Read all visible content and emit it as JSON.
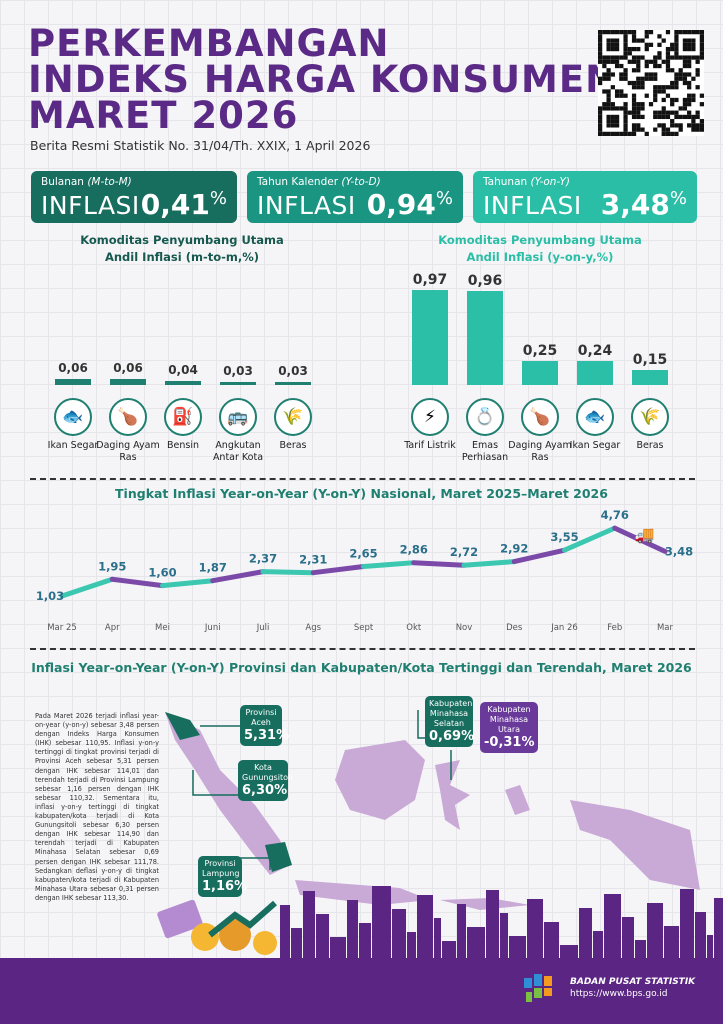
{
  "header": {
    "title_lines": [
      "PERKEMBANGAN",
      "INDEKS HARGA KONSUMEN",
      "MARET 2026"
    ],
    "subtitle": "Berita Resmi Statistik No. 31/04/Th. XXIX, 1 April 2026"
  },
  "cards": [
    {
      "label": "Bulanan",
      "label_em": "(M-to-M)",
      "word": "INFLASI",
      "value": "0,41",
      "unit": "%",
      "color": "#176d5e"
    },
    {
      "label": "Tahun Kalender",
      "label_em": "(Y-to-D)",
      "word": "INFLASI",
      "value": "0,94",
      "unit": "%",
      "color": "#1a9582"
    },
    {
      "label": "Tahunan",
      "label_em": "(Y-on-Y)",
      "word": "INFLASI",
      "value": "3,48",
      "unit": "%",
      "color": "#2bbea6"
    }
  ],
  "chart_data": [
    {
      "type": "bar",
      "title_line1": "Komoditas Penyumbang Utama",
      "title_line2": "Andil Inflasi (m-to-m,%)",
      "categories": [
        "Ikan Segar",
        "Daging Ayam Ras",
        "Bensin",
        "Angkutan Antar Kota",
        "Beras"
      ],
      "values": [
        0.06,
        0.06,
        0.04,
        0.03,
        0.03
      ],
      "labels": [
        "0,06",
        "0,06",
        "0,04",
        "0,03",
        "0,03"
      ],
      "icons": [
        "fish-icon",
        "chicken-icon",
        "fuel-icon",
        "bus-icon",
        "rice-sack-icon"
      ],
      "bar_color": "#1f7f70"
    },
    {
      "type": "bar",
      "title_line1": "Komoditas Penyumbang Utama",
      "title_line2": "Andil Inflasi (y-on-y,%)",
      "categories": [
        "Tarif Listrik",
        "Emas Perhiasan",
        "Daging Ayam Ras",
        "Ikan Segar",
        "Beras"
      ],
      "values": [
        0.97,
        0.96,
        0.25,
        0.24,
        0.15
      ],
      "labels": [
        "0,97",
        "0,96",
        "0,25",
        "0,24",
        "0,15"
      ],
      "icons": [
        "electricity-icon",
        "gold-jewelry-icon",
        "chicken-icon",
        "fish-icon",
        "rice-sack-icon"
      ],
      "bar_color": "#2cbfa7"
    },
    {
      "type": "line",
      "title": "Tingkat Inflasi Year-on-Year (Y-on-Y) Nasional, Maret 2025–Maret 2026",
      "categories": [
        "Mar 25",
        "Apr",
        "Mei",
        "Juni",
        "Juli",
        "Ags",
        "Sept",
        "Okt",
        "Nov",
        "Des",
        "Jan 26",
        "Feb",
        "Mar"
      ],
      "values": [
        1.03,
        1.95,
        1.6,
        1.87,
        2.37,
        2.31,
        2.65,
        2.86,
        2.72,
        2.92,
        3.55,
        4.76,
        3.48
      ],
      "labels": [
        "1,03",
        "1,95",
        "1,60",
        "1,87",
        "2,37",
        "2,31",
        "2,65",
        "2,86",
        "2,72",
        "2,92",
        "3,55",
        "4,76",
        "3,48"
      ],
      "colors": [
        "#3cc8b0",
        "#7b4aa8"
      ]
    }
  ],
  "map": {
    "title": "Inflasi Year-on-Year (Y-on-Y) Provinsi dan Kabupaten/Kota Tertinggi dan Terendah, Maret 2026",
    "paragraph": "Pada Maret 2026 terjadi inflasi year-on-year (y-on-y) sebesar 3,48 persen dengan Indeks Harga Konsumen (IHK) sebesar 110,95. Inflasi y-on-y tertinggi di tingkat provinsi terjadi di Provinsi Aceh sebesar 5,31 persen dengan IHK sebesar 114,01 dan terendah terjadi di Provinsi Lampung sebesar 1,16 persen dengan IHK sebesar 110,32. Sementara itu, inflasi y-on-y tertinggi di tingkat kabupaten/kota terjadi di Kota Gunungsitoli sebesar 6,30 persen dengan IHK sebesar 114,90 dan terendah terjadi di Kabupaten Minahasa Selatan sebesar 0,69 persen dengan IHK sebesar 111,78. Sedangkan deflasi y-on-y di tingkat kabupaten/kota terjadi di Kabupaten Minahasa Utara sebesar 0,31 persen dengan IHK sebesar 113,30.",
    "callouts": [
      {
        "name": "Provinsi Aceh",
        "value": "5,31%"
      },
      {
        "name": "Kota Gunungsitoli",
        "value": "6,30%"
      },
      {
        "name": "Provinsi Lampung",
        "value": "1,16%"
      },
      {
        "name": "Kabupaten Minahasa Selatan",
        "value": "0,69%"
      },
      {
        "name": "Kabupaten Minahasa Utara",
        "value": "-0,31%"
      }
    ]
  },
  "footer": {
    "org": "BADAN PUSAT STATISTIK",
    "url": "https://www.bps.go.id"
  }
}
